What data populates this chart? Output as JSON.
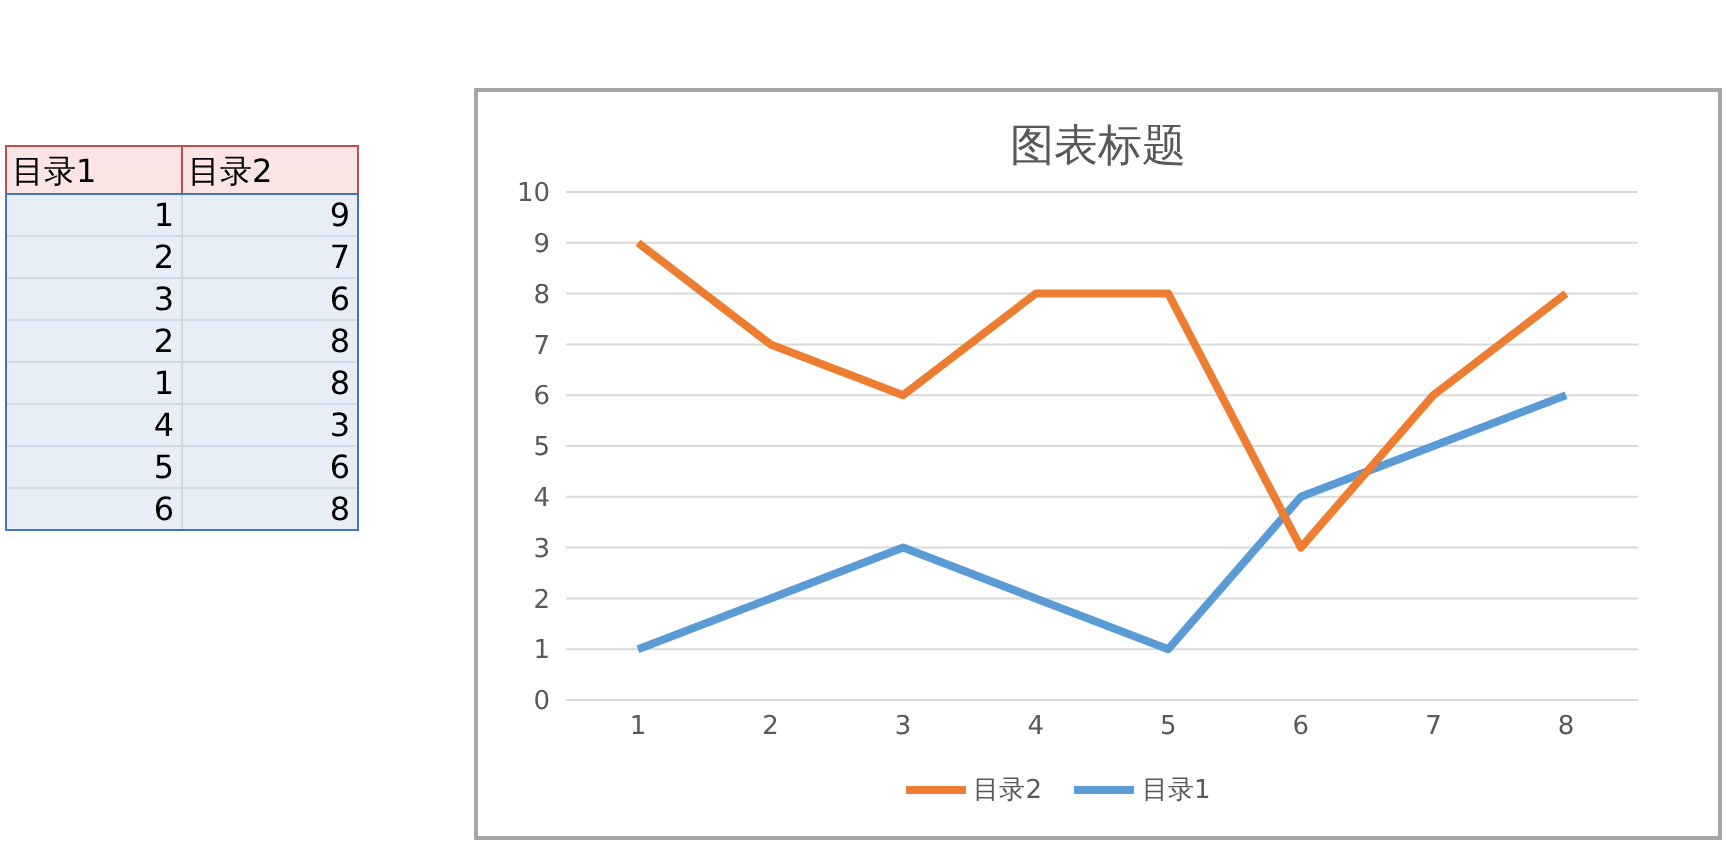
{
  "chart_data": [
    {
      "type": "other",
      "annotations": [
        "目录1",
        "目录2",
        "1",
        "9",
        "2",
        "7",
        "3",
        "6",
        "2",
        "8",
        "1",
        "8",
        "4",
        "3",
        "5",
        "6",
        "6",
        "8"
      ]
    },
    {
      "type": "line",
      "title": "图表标题",
      "categories": [
        "1",
        "2",
        "3",
        "4",
        "5",
        "6",
        "7",
        "8"
      ],
      "series": [
        {
          "name": "目录1",
          "color": "#5b9bd5",
          "values": [
            1,
            2,
            3,
            2,
            1,
            4,
            5,
            6
          ]
        },
        {
          "name": "目录2",
          "color": "#ed7d31",
          "values": [
            9,
            7,
            6,
            8,
            8,
            3,
            6,
            8
          ]
        }
      ],
      "ylim": [
        0,
        10
      ],
      "yticks": [
        0,
        1,
        2,
        3,
        4,
        5,
        6,
        7,
        8,
        9,
        10
      ],
      "grid": "y",
      "legend": "bottom",
      "marker": "none",
      "line_style": "solid"
    }
  ]
}
